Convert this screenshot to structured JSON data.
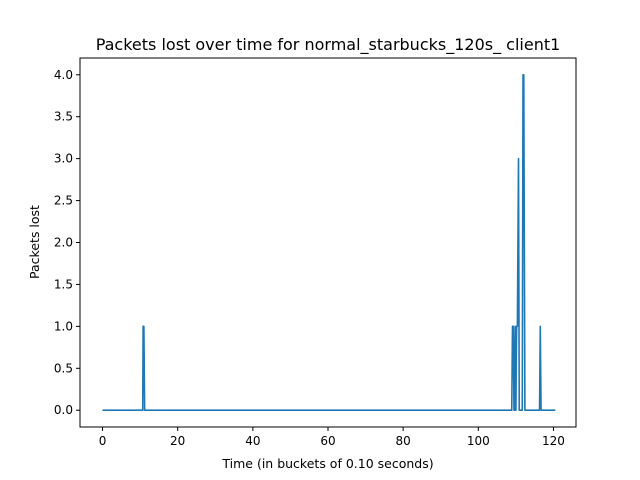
{
  "chart_data": {
    "type": "line",
    "title": "Packets lost over time for normal_starbucks_120s_ client1",
    "xlabel": "Time (in buckets of 0.10 seconds)",
    "ylabel": "Packets lost",
    "xlim": [
      -6,
      126
    ],
    "ylim": [
      -0.2,
      4.2
    ],
    "xticks": [
      0,
      20,
      40,
      60,
      80,
      100,
      120
    ],
    "yticks": [
      0.0,
      0.5,
      1.0,
      1.5,
      2.0,
      2.5,
      3.0,
      3.5,
      4.0
    ],
    "ytick_labels": [
      "0.0",
      "0.5",
      "1.0",
      "1.5",
      "2.0",
      "2.5",
      "3.0",
      "3.5",
      "4.0"
    ],
    "grid": false,
    "line_color": "#1f77b4",
    "series": [
      {
        "x": [
          0,
          10.7,
          10.8,
          11.0,
          11.2,
          108.9,
          109.1,
          109.3,
          109.5,
          109.6,
          109.8,
          110.0,
          110.2,
          110.4,
          110.7,
          110.9,
          111.1,
          111.7,
          111.9,
          112.1,
          112.4,
          116.3,
          116.5,
          116.7,
          120.5
        ],
        "y": [
          0,
          0,
          1,
          1,
          0,
          0,
          1,
          1,
          0,
          0,
          1,
          0,
          1,
          1,
          3,
          0,
          0,
          0,
          4,
          4,
          0,
          0,
          1,
          0,
          0
        ]
      }
    ]
  }
}
